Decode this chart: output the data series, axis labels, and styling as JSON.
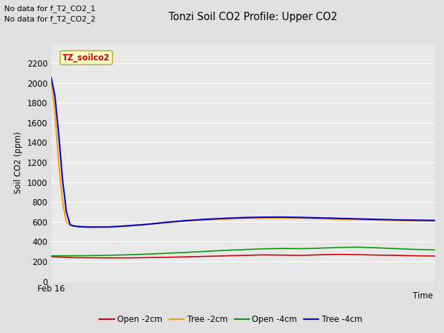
{
  "title": "Tonzi Soil CO2 Profile: Upper CO2",
  "ylabel": "Soil CO2 (ppm)",
  "xlabel": "Time",
  "no_data_texts": [
    "No data for f_T2_CO2_1",
    "No data for f_T2_CO2_2"
  ],
  "annotation_label": "TZ_soilco2",
  "annotation_box_color": "#ffffcc",
  "annotation_text_color": "#cc0000",
  "x_tick_label": "Feb 16",
  "ylim": [
    0,
    2400
  ],
  "yticks": [
    0,
    200,
    400,
    600,
    800,
    1000,
    1200,
    1400,
    1600,
    1800,
    2000,
    2200
  ],
  "background_color": "#e0e0e0",
  "plot_bg_color": "#e8e8e8",
  "grid_color": "#ffffff",
  "legend_entries": [
    "Open -2cm",
    "Tree -2cm",
    "Open -4cm",
    "Tree -4cm"
  ],
  "legend_colors": [
    "#cc0000",
    "#ff9900",
    "#009900",
    "#0000cc"
  ],
  "line_colors": [
    "#cc0000",
    "#ff9900",
    "#009900",
    "#0000cc"
  ],
  "series": {
    "open_2cm": {
      "x": [
        0,
        5,
        10,
        15,
        20,
        25,
        30,
        35,
        40,
        45,
        50,
        55,
        60,
        65,
        70,
        75,
        80,
        85,
        90,
        95,
        100
      ],
      "y": [
        250,
        240,
        238,
        237,
        237,
        240,
        243,
        247,
        252,
        257,
        262,
        267,
        265,
        262,
        268,
        272,
        270,
        265,
        262,
        258,
        255
      ]
    },
    "tree_2cm": {
      "x": [
        0,
        1,
        2,
        3,
        4,
        5,
        6,
        7,
        8,
        9,
        10,
        15,
        20,
        25,
        30,
        35,
        40,
        45,
        50,
        55,
        60,
        65,
        70,
        75,
        80,
        85,
        90,
        95,
        100
      ],
      "y": [
        2050,
        1700,
        1200,
        800,
        600,
        565,
        558,
        555,
        553,
        551,
        550,
        550,
        560,
        575,
        595,
        610,
        620,
        628,
        635,
        638,
        640,
        637,
        632,
        627,
        622,
        618,
        615,
        610,
        608
      ]
    },
    "open_4cm": {
      "x": [
        0,
        5,
        10,
        15,
        20,
        25,
        30,
        35,
        40,
        45,
        50,
        55,
        60,
        65,
        70,
        75,
        80,
        85,
        90,
        95,
        100
      ],
      "y": [
        258,
        258,
        260,
        263,
        268,
        275,
        283,
        292,
        302,
        312,
        320,
        328,
        332,
        330,
        335,
        342,
        345,
        338,
        330,
        322,
        318
      ]
    },
    "tree_4cm": {
      "x": [
        0,
        1,
        2,
        3,
        4,
        5,
        6,
        7,
        8,
        9,
        10,
        15,
        20,
        25,
        30,
        35,
        40,
        45,
        50,
        55,
        60,
        65,
        70,
        75,
        80,
        85,
        90,
        95,
        100
      ],
      "y": [
        2060,
        1870,
        1480,
        1020,
        700,
        570,
        558,
        552,
        550,
        548,
        547,
        548,
        560,
        575,
        595,
        612,
        625,
        635,
        643,
        647,
        648,
        645,
        640,
        635,
        630,
        625,
        620,
        617,
        615
      ]
    }
  }
}
